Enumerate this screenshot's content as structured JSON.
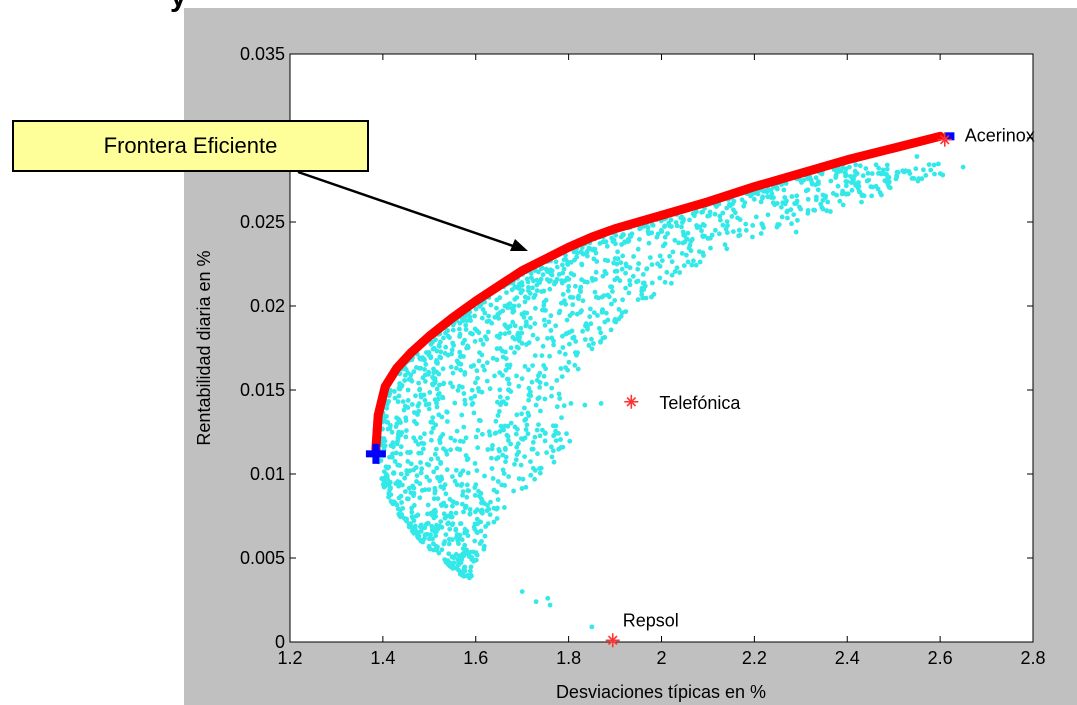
{
  "page": {
    "title": "y"
  },
  "annotation": {
    "callout": "Frontera Eficiente"
  },
  "colors": {
    "figure_background": "#c0c0c0",
    "plot_background": "#ffffff",
    "frontier": "#ff0000",
    "simulated_portfolios": "#33e8e8",
    "asset_markers": "#ff3333",
    "extreme_portfolios": "#0000ff",
    "callout_fill": "#ffff99"
  },
  "chart_data": {
    "type": "scatter",
    "title": "",
    "xlabel": "Desviaciones típicas en %",
    "ylabel": "Rentabilidad diaria en %",
    "xlim": [
      1.2,
      2.8
    ],
    "ylim": [
      0,
      0.035
    ],
    "xticks": [
      "1.2",
      "1.4",
      "1.6",
      "1.8",
      "2",
      "2.2",
      "2.4",
      "2.6",
      "2.8"
    ],
    "yticks": [
      "0",
      "0.005",
      "0.01",
      "0.015",
      "0.02",
      "0.025",
      "0.03",
      "0.035"
    ],
    "grid": false,
    "frontier": {
      "x": [
        1.385,
        1.39,
        1.405,
        1.43,
        1.46,
        1.5,
        1.55,
        1.6,
        1.65,
        1.7,
        1.75,
        1.8,
        1.85,
        1.9,
        2.0,
        2.1,
        2.2,
        2.3,
        2.4,
        2.5,
        2.6
      ],
      "y": [
        0.0115,
        0.0135,
        0.0152,
        0.0163,
        0.0172,
        0.0182,
        0.0193,
        0.0203,
        0.0212,
        0.0221,
        0.0228,
        0.0235,
        0.0241,
        0.0246,
        0.0254,
        0.0262,
        0.0271,
        0.0279,
        0.0287,
        0.0294,
        0.0301
      ]
    },
    "min_variance_portfolio": {
      "x": 1.385,
      "y": 0.0112
    },
    "max_return_portfolio": {
      "x": 2.62,
      "y": 0.0301
    },
    "assets": [
      {
        "label": "Acerinox",
        "x": 2.61,
        "y": 0.0299
      },
      {
        "label": "Telefónica",
        "x": 1.935,
        "y": 0.0143
      },
      {
        "label": "Repsol",
        "x": 1.895,
        "y": 0.0001
      }
    ],
    "simulated_portfolios": {
      "count": 1800,
      "outliers": [
        [
          1.59,
          0.0145
        ],
        [
          1.66,
          0.0143
        ],
        [
          1.73,
          0.0141
        ],
        [
          1.805,
          0.0142
        ],
        [
          1.835,
          0.0141
        ],
        [
          1.87,
          0.0142
        ],
        [
          1.7,
          0.003
        ],
        [
          1.73,
          0.0024
        ],
        [
          1.76,
          0.0022
        ],
        [
          1.755,
          0.0026
        ],
        [
          1.85,
          0.0009
        ],
        [
          2.26,
          0.0253
        ],
        [
          2.28,
          0.0249
        ],
        [
          2.29,
          0.0244
        ],
        [
          2.37,
          0.0267
        ],
        [
          2.4,
          0.0274
        ],
        [
          2.47,
          0.0279
        ],
        [
          2.55,
          0.0289
        ]
      ]
    }
  }
}
